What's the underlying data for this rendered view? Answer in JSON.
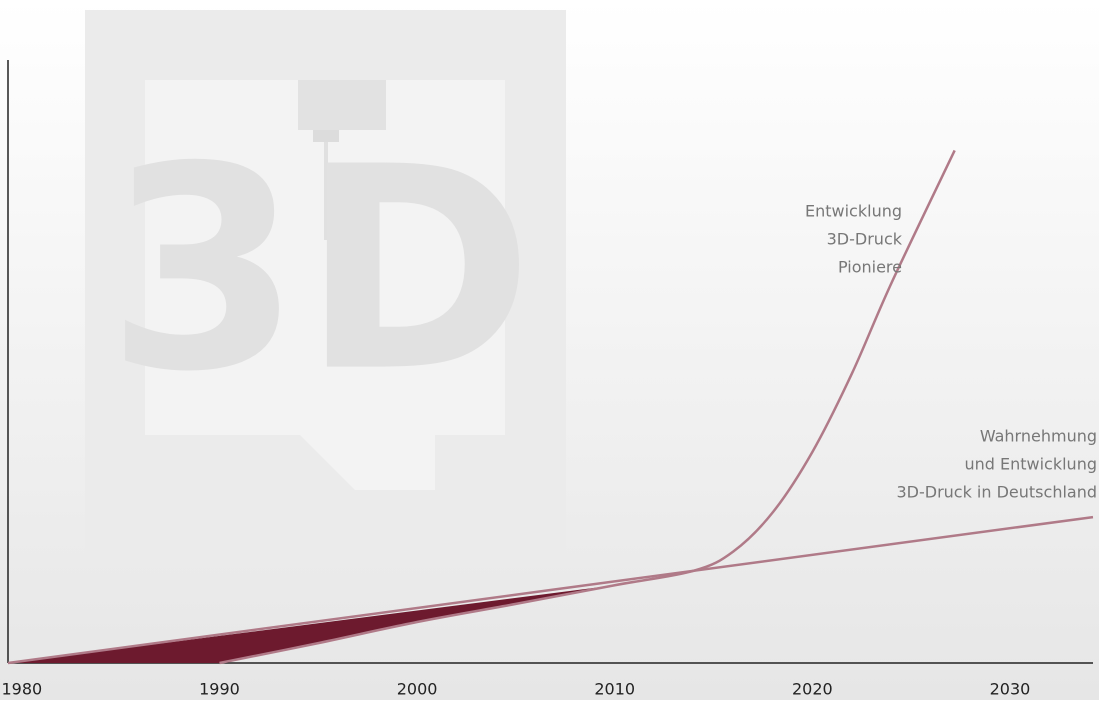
{
  "chart_data": {
    "type": "line",
    "xlim": [
      1979.3,
      2034.2
    ],
    "xticks": [
      1980,
      1990,
      2000,
      2010,
      2020,
      2030
    ],
    "ylim": [
      0,
      100
    ],
    "fill_color": "#6d1a2e",
    "series": [
      {
        "name": [
          "Entwicklung",
          "3D-Druck",
          "Pioniere"
        ],
        "color": "#b07a88",
        "x": [
          1990,
          1995,
          2000,
          2005,
          2010,
          2014,
          2016,
          2018,
          2020,
          2022,
          2024,
          2027.2
        ],
        "values": [
          0,
          3.3,
          6.8,
          9.8,
          12.9,
          15.3,
          18.5,
          25,
          35,
          48,
          63,
          85
        ]
      },
      {
        "name": [
          "Wahrnehmung",
          "und Entwicklung",
          "3D-Druck in Deutschland"
        ],
        "color": "#b07a88",
        "x": [
          1979.3,
          2034.2
        ],
        "values": [
          0,
          24.2
        ]
      }
    ]
  }
}
